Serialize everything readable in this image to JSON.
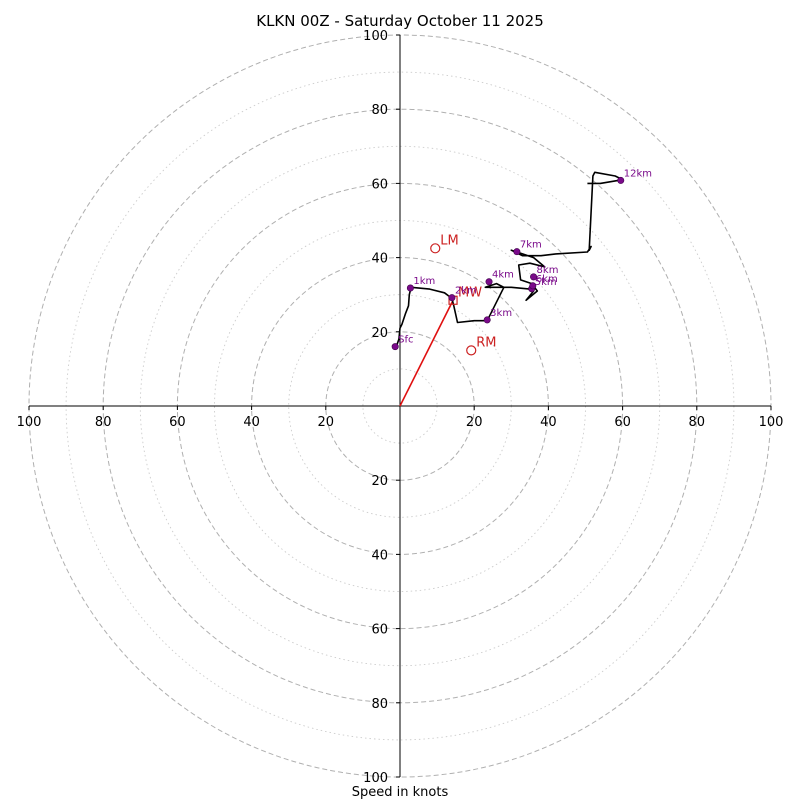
{
  "chart_data": {
    "type": "hodograph",
    "title": "KLKN 00Z - Saturday October 11 2025",
    "xlabel": "Speed in knots",
    "rmax": 100,
    "ring_step": 10,
    "tick_labels_x": [
      "100",
      "80",
      "60",
      "40",
      "20",
      "20",
      "40",
      "60",
      "80",
      "100"
    ],
    "tick_labels_y": [
      "100",
      "80",
      "60",
      "40",
      "20",
      "20",
      "40",
      "60",
      "80",
      "100"
    ],
    "tick_values_x": [
      -100,
      -80,
      -60,
      -40,
      -20,
      20,
      40,
      60,
      80,
      100
    ],
    "tick_values_y": [
      100,
      80,
      60,
      40,
      20,
      -20,
      -40,
      -60,
      -80,
      -100
    ],
    "trace": [
      [
        -1,
        16
      ],
      [
        -0.3,
        18
      ],
      [
        0,
        21
      ],
      [
        0.5,
        22
      ],
      [
        1.5,
        25
      ],
      [
        2.3,
        27
      ],
      [
        2.5,
        30
      ],
      [
        3,
        32
      ],
      [
        8,
        31.5
      ],
      [
        12,
        30.5
      ],
      [
        14,
        29
      ],
      [
        14.5,
        27
      ],
      [
        15.5,
        22.5
      ],
      [
        20,
        23
      ],
      [
        23.5,
        23
      ],
      [
        27,
        30
      ],
      [
        28,
        32
      ],
      [
        26,
        33
      ],
      [
        23,
        32
      ],
      [
        30,
        32
      ],
      [
        35,
        31.5
      ],
      [
        36,
        31
      ],
      [
        34,
        28.5
      ],
      [
        37,
        31
      ],
      [
        35.5,
        33
      ],
      [
        32.5,
        34
      ],
      [
        32,
        38
      ],
      [
        35,
        38.5
      ],
      [
        39,
        37.5
      ],
      [
        36,
        40
      ],
      [
        31.5,
        41.5
      ],
      [
        30,
        42
      ],
      [
        33,
        40.5
      ],
      [
        38,
        40.5
      ],
      [
        42,
        41
      ],
      [
        50.5,
        41.5
      ],
      [
        51.5,
        43
      ],
      [
        51,
        42
      ],
      [
        52,
        62
      ],
      [
        52.5,
        63
      ],
      [
        58,
        62
      ],
      [
        60,
        61
      ],
      [
        54,
        60
      ],
      [
        50.5,
        60
      ]
    ],
    "height_markers": [
      {
        "label": "Sfc",
        "u": -1.3,
        "v": 16
      },
      {
        "label": "1km",
        "u": 2.8,
        "v": 31.8
      },
      {
        "label": "2km",
        "u": 14,
        "v": 29.2
      },
      {
        "label": "3km",
        "u": 23.5,
        "v": 23.2
      },
      {
        "label": "4km",
        "u": 24,
        "v": 33.5
      },
      {
        "label": "5km",
        "u": 35.5,
        "v": 31.6
      },
      {
        "label": "6km",
        "u": 35.8,
        "v": 32.4
      },
      {
        "label": "7km",
        "u": 31.5,
        "v": 41.6
      },
      {
        "label": "8km",
        "u": 36,
        "v": 34.8
      },
      {
        "label": "12km",
        "u": 59.5,
        "v": 60.8
      }
    ],
    "motion_markers": [
      {
        "label": "LM",
        "u": 9.5,
        "v": 42.5
      },
      {
        "label": "RM",
        "u": 19.2,
        "v": 15
      },
      {
        "label": "MW",
        "u": 14.3,
        "v": 28.5
      }
    ],
    "storm_motion_vector": {
      "u": 14.3,
      "v": 28.5
    },
    "colors": {
      "trace": "#000000",
      "height_marker": "#7a0a8a",
      "motion": "#cc2222",
      "grid": "#b0b0b0",
      "grid_minor": "#cccccc"
    }
  }
}
